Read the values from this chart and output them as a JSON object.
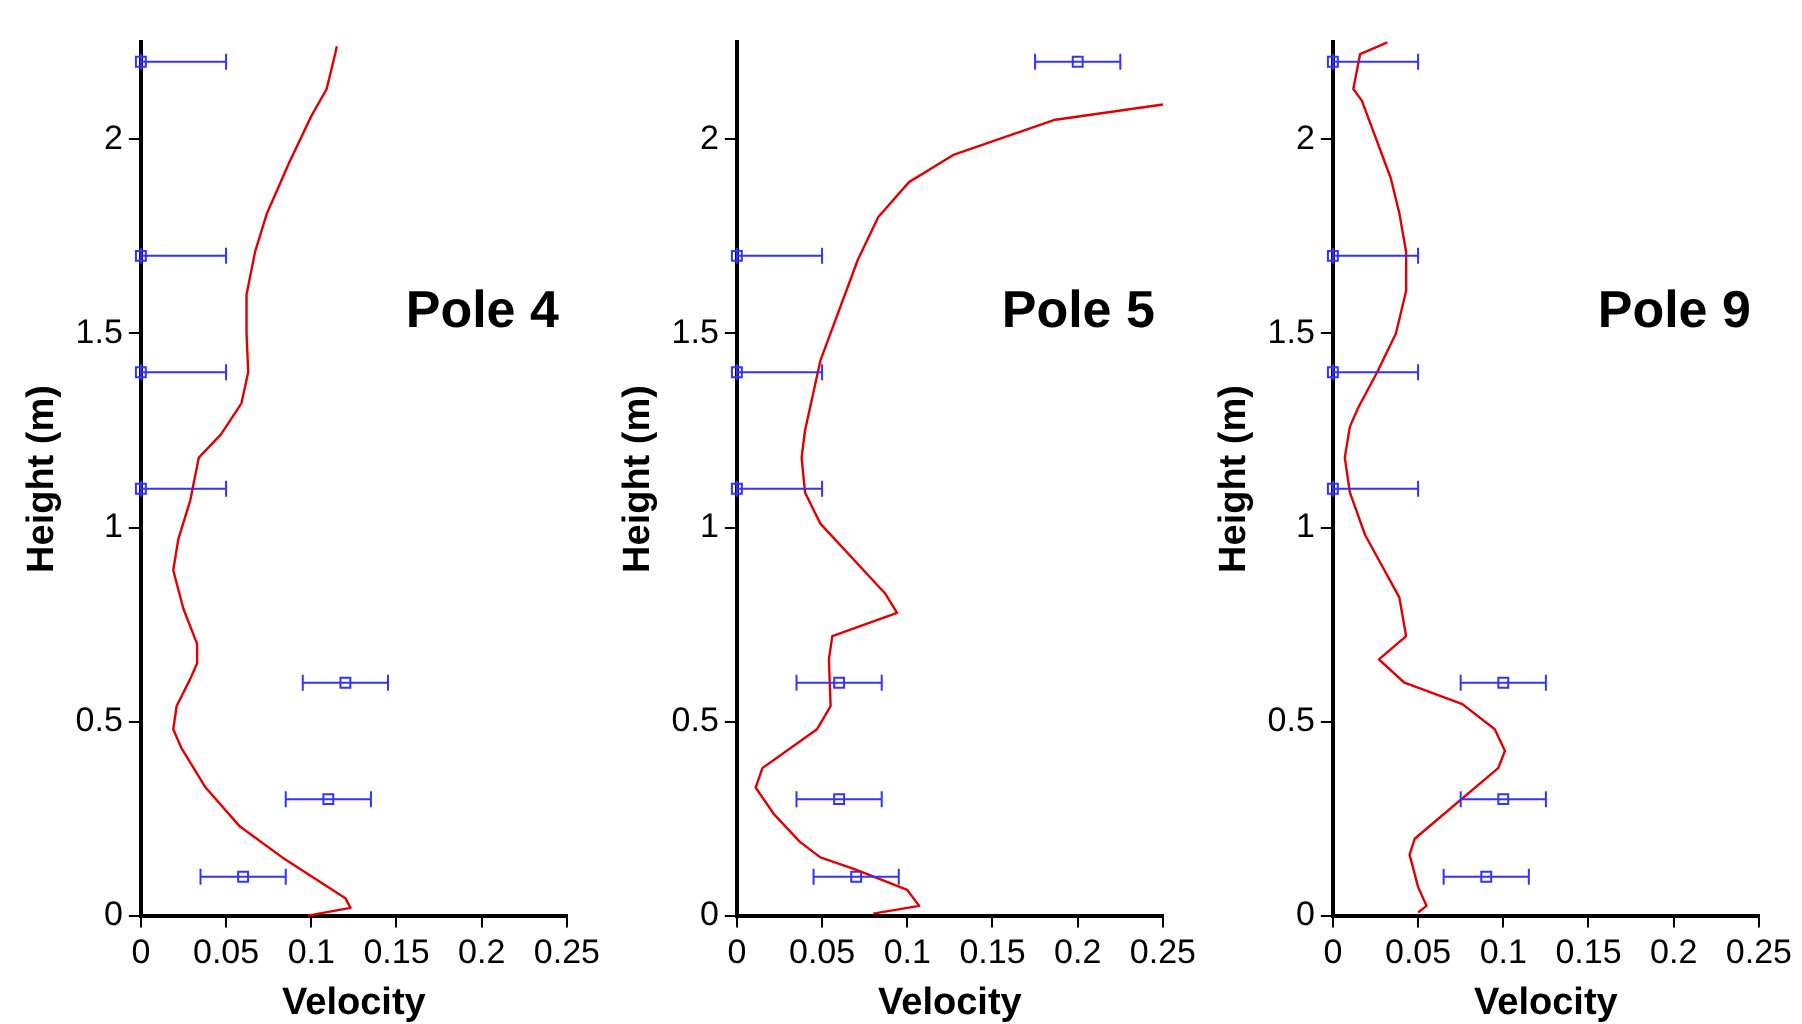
{
  "chart_data": [
    {
      "type": "line",
      "title": "Pole 4",
      "xlabel": "Velocity",
      "ylabel": "Height (m)",
      "xlim": [
        0,
        0.25
      ],
      "xticks": [
        0,
        0.05,
        0.1,
        0.15,
        0.2,
        0.25
      ],
      "ylim": [
        0,
        2.25
      ],
      "yticks": [
        0,
        0.5,
        1,
        1.5,
        2
      ],
      "series": [
        {
          "type": "line",
          "color": "#e00000",
          "marker": "none",
          "x": [
            0.098,
            0.123,
            0.12,
            0.083,
            0.058,
            0.038,
            0.024,
            0.019,
            0.021,
            0.029,
            0.033,
            0.033,
            0.025,
            0.019,
            0.022,
            0.029,
            0.034,
            0.047,
            0.059,
            0.063,
            0.062,
            0.062,
            0.067,
            0.074,
            0.087,
            0.1,
            0.109,
            0.114,
            0.115
          ],
          "values": [
            0,
            0.02,
            0.045,
            0.15,
            0.23,
            0.33,
            0.43,
            0.48,
            0.54,
            0.61,
            0.65,
            0.7,
            0.79,
            0.89,
            0.97,
            1.07,
            1.18,
            1.24,
            1.32,
            1.4,
            1.5,
            1.6,
            1.71,
            1.81,
            1.94,
            2.06,
            2.13,
            2.22,
            2.24
          ]
        },
        {
          "type": "scatter",
          "color": "#3333ff",
          "marker": "square",
          "x": [
            0,
            0,
            0,
            0,
            0.12,
            0.11,
            0.06
          ],
          "values": [
            2.2,
            1.7,
            1.4,
            1.1,
            0.6,
            0.3,
            0.1
          ],
          "xerrors": [
            [
              0,
              0.05
            ],
            [
              0,
              0.05
            ],
            [
              0,
              0.05
            ],
            [
              0,
              0.05
            ],
            0.025,
            0.025,
            0.025
          ]
        }
      ]
    },
    {
      "type": "line",
      "title": "Pole 5",
      "xlabel": "Velocity",
      "ylabel": "Height (m)",
      "xlim": [
        0,
        0.25
      ],
      "xticks": [
        0,
        0.05,
        0.1,
        0.15,
        0.2,
        0.25
      ],
      "ylim": [
        0,
        2.25
      ],
      "yticks": [
        0,
        0.5,
        1,
        1.5,
        2
      ],
      "series": [
        {
          "type": "line",
          "color": "#e00000",
          "marker": "none",
          "x": [
            0.08,
            0.107,
            0.1,
            0.069,
            0.049,
            0.037,
            0.022,
            0.011,
            0.015,
            0.047,
            0.055,
            0.054,
            0.056,
            0.094,
            0.087,
            0.049,
            0.04,
            0.038,
            0.04,
            0.049,
            0.071,
            0.083,
            0.101,
            0.127,
            0.186,
            0.25
          ],
          "values": [
            0.005,
            0.025,
            0.066,
            0.12,
            0.15,
            0.19,
            0.26,
            0.33,
            0.38,
            0.48,
            0.54,
            0.66,
            0.72,
            0.78,
            0.83,
            1.01,
            1.09,
            1.18,
            1.25,
            1.43,
            1.69,
            1.8,
            1.89,
            1.96,
            2.05,
            2.09
          ]
        },
        {
          "type": "scatter",
          "color": "#3333ff",
          "marker": "square",
          "x": [
            0.2,
            0,
            0,
            0,
            0.06,
            0.06,
            0.07
          ],
          "values": [
            2.2,
            1.7,
            1.4,
            1.1,
            0.6,
            0.3,
            0.1
          ],
          "xerrors": [
            0.025,
            [
              0,
              0.05
            ],
            [
              0,
              0.05
            ],
            [
              0,
              0.05
            ],
            0.025,
            0.025,
            0.025
          ]
        }
      ]
    },
    {
      "type": "line",
      "title": "Pole 9",
      "xlabel": "Velocity",
      "ylabel": "Height (m)",
      "xlim": [
        0,
        0.25
      ],
      "xticks": [
        0,
        0.05,
        0.1,
        0.15,
        0.2,
        0.25
      ],
      "ylim": [
        0,
        2.25
      ],
      "yticks": [
        0,
        0.5,
        1,
        1.5,
        2
      ],
      "series": [
        {
          "type": "line",
          "color": "#e00000",
          "marker": "none",
          "x": [
            0.05,
            0.055,
            0.05,
            0.045,
            0.048,
            0.097,
            0.101,
            0.095,
            0.076,
            0.042,
            0.027,
            0.043,
            0.039,
            0.019,
            0.01,
            0.007,
            0.01,
            0.015,
            0.026,
            0.037,
            0.043,
            0.043,
            0.039,
            0.034,
            0.017,
            0.012,
            0.016,
            0.032
          ],
          "values": [
            0.008,
            0.025,
            0.074,
            0.157,
            0.198,
            0.38,
            0.424,
            0.48,
            0.545,
            0.6,
            0.66,
            0.72,
            0.82,
            0.98,
            1.09,
            1.18,
            1.26,
            1.31,
            1.4,
            1.5,
            1.61,
            1.71,
            1.81,
            1.9,
            2.1,
            2.13,
            2.22,
            2.25
          ]
        },
        {
          "type": "scatter",
          "color": "#3333ff",
          "marker": "square",
          "x": [
            0,
            0,
            0,
            0,
            0.1,
            0.1,
            0.09
          ],
          "values": [
            2.2,
            1.7,
            1.4,
            1.1,
            0.6,
            0.3,
            0.1
          ],
          "xerrors": [
            [
              0,
              0.05
            ],
            [
              0,
              0.05
            ],
            [
              0,
              0.05
            ],
            [
              0,
              0.05
            ],
            0.025,
            0.025,
            0.025
          ]
        }
      ]
    }
  ]
}
